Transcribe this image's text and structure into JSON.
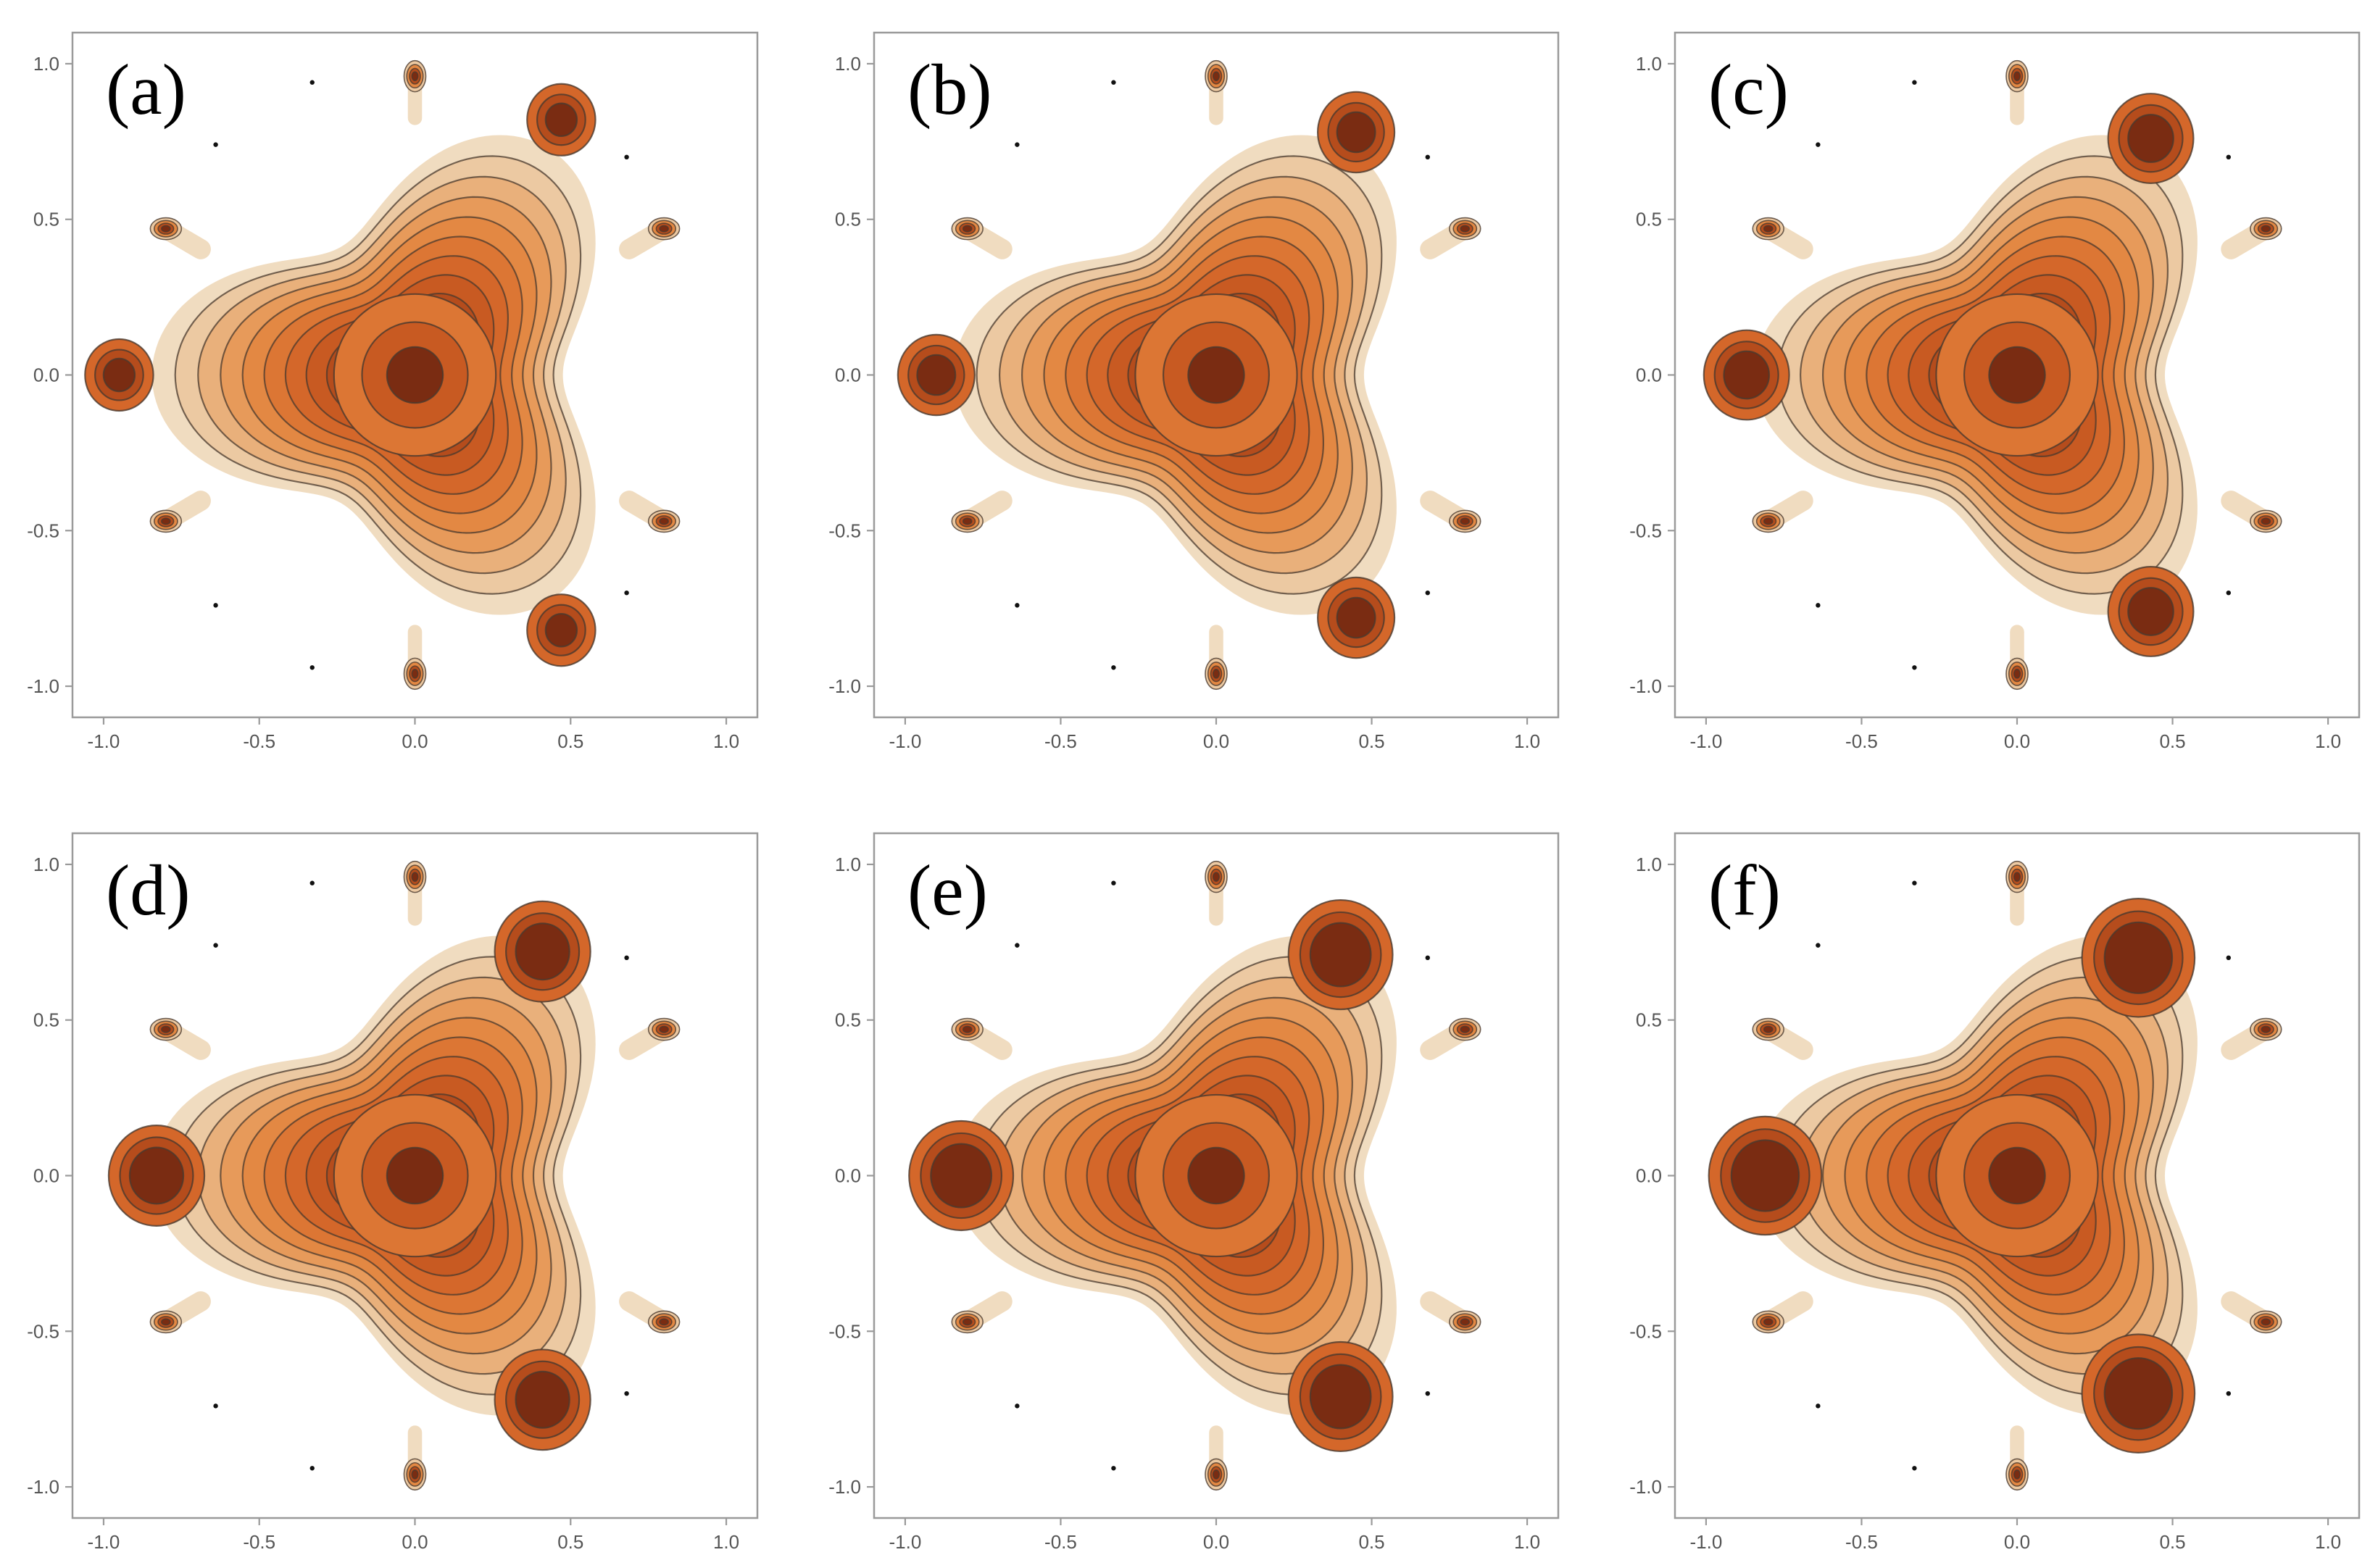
{
  "figure": {
    "panel_count": 6
  },
  "colors": {
    "levels": [
      "#f0dcc0",
      "#ecc9a2",
      "#e9b07b",
      "#e79a5a",
      "#e38843",
      "#dc7634",
      "#d4672a",
      "#c85a22",
      "#b54c1c",
      "#9a3e18",
      "#7a2c12"
    ],
    "contour_line": "#4a3a2e",
    "frame": "#9a9a9a",
    "tick_text": "#555555",
    "dot": "#111111"
  },
  "chart_data": [
    {
      "type": "contour",
      "label": "(a)",
      "xlim": [
        -1.1,
        1.1
      ],
      "ylim": [
        -1.1,
        1.1
      ],
      "xticks": [
        "-1.0",
        "-0.5",
        "0.0",
        "0.5",
        "1.0"
      ],
      "yticks": [
        "1.0",
        "0.5",
        "0.0",
        "-0.5",
        "-1.0"
      ],
      "center_peak": {
        "x": 0.0,
        "y": 0.0,
        "strength": 1.0
      },
      "lobe_peaks": [
        {
          "x": -0.95,
          "y": 0.0
        },
        {
          "x": 0.47,
          "y": 0.82
        },
        {
          "x": 0.47,
          "y": -0.82
        }
      ],
      "lobe_strength": 0.45,
      "satellites": [
        {
          "x": 0.0,
          "y": 0.96
        },
        {
          "x": 0.0,
          "y": -0.96
        },
        {
          "x": -0.8,
          "y": 0.47
        },
        {
          "x": -0.8,
          "y": -0.47
        },
        {
          "x": 0.8,
          "y": 0.47
        },
        {
          "x": 0.8,
          "y": -0.47
        }
      ],
      "dots": [
        {
          "x": -0.33,
          "y": 0.94
        },
        {
          "x": -0.64,
          "y": 0.74
        },
        {
          "x": -0.64,
          "y": -0.74
        },
        {
          "x": -0.33,
          "y": -0.94
        },
        {
          "x": 0.68,
          "y": 0.7
        },
        {
          "x": 0.68,
          "y": -0.7
        }
      ]
    },
    {
      "type": "contour",
      "label": "(b)",
      "xlim": [
        -1.1,
        1.1
      ],
      "ylim": [
        -1.1,
        1.1
      ],
      "xticks": [
        "-1.0",
        "-0.5",
        "0.0",
        "0.5",
        "1.0"
      ],
      "yticks": [
        "1.0",
        "0.5",
        "0.0",
        "-0.5",
        "-1.0"
      ],
      "center_peak": {
        "x": 0.0,
        "y": 0.0,
        "strength": 1.0
      },
      "lobe_peaks": [
        {
          "x": -0.9,
          "y": 0.0
        },
        {
          "x": 0.45,
          "y": 0.78
        },
        {
          "x": 0.45,
          "y": -0.78
        }
      ],
      "lobe_strength": 0.7,
      "satellites": [
        {
          "x": 0.0,
          "y": 0.96
        },
        {
          "x": 0.0,
          "y": -0.96
        },
        {
          "x": -0.8,
          "y": 0.47
        },
        {
          "x": -0.8,
          "y": -0.47
        },
        {
          "x": 0.8,
          "y": 0.47
        },
        {
          "x": 0.8,
          "y": -0.47
        }
      ],
      "dots": [
        {
          "x": -0.33,
          "y": 0.94
        },
        {
          "x": -0.64,
          "y": 0.74
        },
        {
          "x": -0.64,
          "y": -0.74
        },
        {
          "x": -0.33,
          "y": -0.94
        },
        {
          "x": 0.68,
          "y": 0.7
        },
        {
          "x": 0.68,
          "y": -0.7
        }
      ]
    },
    {
      "type": "contour",
      "label": "(c)",
      "xlim": [
        -1.1,
        1.1
      ],
      "ylim": [
        -1.1,
        1.1
      ],
      "xticks": [
        "-1.0",
        "-0.5",
        "0.0",
        "0.5",
        "1.0"
      ],
      "yticks": [
        "1.0",
        "0.5",
        "0.0",
        "-0.5",
        "-1.0"
      ],
      "center_peak": {
        "x": 0.0,
        "y": 0.0,
        "strength": 1.0
      },
      "lobe_peaks": [
        {
          "x": -0.87,
          "y": 0.0
        },
        {
          "x": 0.43,
          "y": 0.76
        },
        {
          "x": 0.43,
          "y": -0.76
        }
      ],
      "lobe_strength": 0.95,
      "satellites": [
        {
          "x": 0.0,
          "y": 0.96
        },
        {
          "x": 0.0,
          "y": -0.96
        },
        {
          "x": -0.8,
          "y": 0.47
        },
        {
          "x": -0.8,
          "y": -0.47
        },
        {
          "x": 0.8,
          "y": 0.47
        },
        {
          "x": 0.8,
          "y": -0.47
        }
      ],
      "dots": [
        {
          "x": -0.33,
          "y": 0.94
        },
        {
          "x": -0.64,
          "y": 0.74
        },
        {
          "x": -0.64,
          "y": -0.74
        },
        {
          "x": -0.33,
          "y": -0.94
        },
        {
          "x": 0.68,
          "y": 0.7
        },
        {
          "x": 0.68,
          "y": -0.7
        }
      ]
    },
    {
      "type": "contour",
      "label": "(d)",
      "xlim": [
        -1.1,
        1.1
      ],
      "ylim": [
        -1.1,
        1.1
      ],
      "xticks": [
        "-1.0",
        "-0.5",
        "0.0",
        "0.5",
        "1.0"
      ],
      "yticks": [
        "1.0",
        "0.5",
        "0.0",
        "-0.5",
        "-1.0"
      ],
      "center_peak": {
        "x": 0.0,
        "y": 0.0,
        "strength": 1.0
      },
      "lobe_peaks": [
        {
          "x": -0.83,
          "y": 0.0
        },
        {
          "x": 0.41,
          "y": 0.72
        },
        {
          "x": 0.41,
          "y": -0.72
        }
      ],
      "lobe_strength": 1.25,
      "satellites": [
        {
          "x": 0.0,
          "y": 0.96
        },
        {
          "x": 0.0,
          "y": -0.96
        },
        {
          "x": -0.8,
          "y": 0.47
        },
        {
          "x": -0.8,
          "y": -0.47
        },
        {
          "x": 0.8,
          "y": 0.47
        },
        {
          "x": 0.8,
          "y": -0.47
        }
      ],
      "dots": [
        {
          "x": -0.33,
          "y": 0.94
        },
        {
          "x": -0.64,
          "y": 0.74
        },
        {
          "x": -0.64,
          "y": -0.74
        },
        {
          "x": -0.33,
          "y": -0.94
        },
        {
          "x": 0.68,
          "y": 0.7
        },
        {
          "x": 0.68,
          "y": -0.7
        }
      ]
    },
    {
      "type": "contour",
      "label": "(e)",
      "xlim": [
        -1.1,
        1.1
      ],
      "ylim": [
        -1.1,
        1.1
      ],
      "xticks": [
        "-1.0",
        "-0.5",
        "0.0",
        "0.5",
        "1.0"
      ],
      "yticks": [
        "1.0",
        "0.5",
        "0.0",
        "-0.5",
        "-1.0"
      ],
      "center_peak": {
        "x": 0.0,
        "y": 0.0,
        "strength": 1.0
      },
      "lobe_peaks": [
        {
          "x": -0.82,
          "y": 0.0
        },
        {
          "x": 0.4,
          "y": 0.71
        },
        {
          "x": 0.4,
          "y": -0.71
        }
      ],
      "lobe_strength": 1.5,
      "satellites": [
        {
          "x": 0.0,
          "y": 0.96
        },
        {
          "x": 0.0,
          "y": -0.96
        },
        {
          "x": -0.8,
          "y": 0.47
        },
        {
          "x": -0.8,
          "y": -0.47
        },
        {
          "x": 0.8,
          "y": 0.47
        },
        {
          "x": 0.8,
          "y": -0.47
        }
      ],
      "dots": [
        {
          "x": -0.33,
          "y": 0.94
        },
        {
          "x": -0.64,
          "y": 0.74
        },
        {
          "x": -0.64,
          "y": -0.74
        },
        {
          "x": -0.33,
          "y": -0.94
        },
        {
          "x": 0.68,
          "y": 0.7
        },
        {
          "x": 0.68,
          "y": -0.7
        }
      ]
    },
    {
      "type": "contour",
      "label": "(f)",
      "xlim": [
        -1.1,
        1.1
      ],
      "ylim": [
        -1.1,
        1.1
      ],
      "xticks": [
        "-1.0",
        "-0.5",
        "0.0",
        "0.5",
        "1.0"
      ],
      "yticks": [
        "1.0",
        "0.5",
        "0.0",
        "-0.5",
        "-1.0"
      ],
      "center_peak": {
        "x": 0.0,
        "y": 0.0,
        "strength": 1.0
      },
      "lobe_peaks": [
        {
          "x": -0.81,
          "y": 0.0
        },
        {
          "x": 0.39,
          "y": 0.7
        },
        {
          "x": 0.39,
          "y": -0.7
        }
      ],
      "lobe_strength": 1.75,
      "satellites": [
        {
          "x": 0.0,
          "y": 0.96
        },
        {
          "x": 0.0,
          "y": -0.96
        },
        {
          "x": -0.8,
          "y": 0.47
        },
        {
          "x": -0.8,
          "y": -0.47
        },
        {
          "x": 0.8,
          "y": 0.47
        },
        {
          "x": 0.8,
          "y": -0.47
        }
      ],
      "dots": [
        {
          "x": -0.33,
          "y": 0.94
        },
        {
          "x": -0.64,
          "y": 0.74
        },
        {
          "x": -0.64,
          "y": -0.74
        },
        {
          "x": -0.33,
          "y": -0.94
        },
        {
          "x": 0.68,
          "y": 0.7
        },
        {
          "x": 0.68,
          "y": -0.7
        }
      ]
    }
  ]
}
